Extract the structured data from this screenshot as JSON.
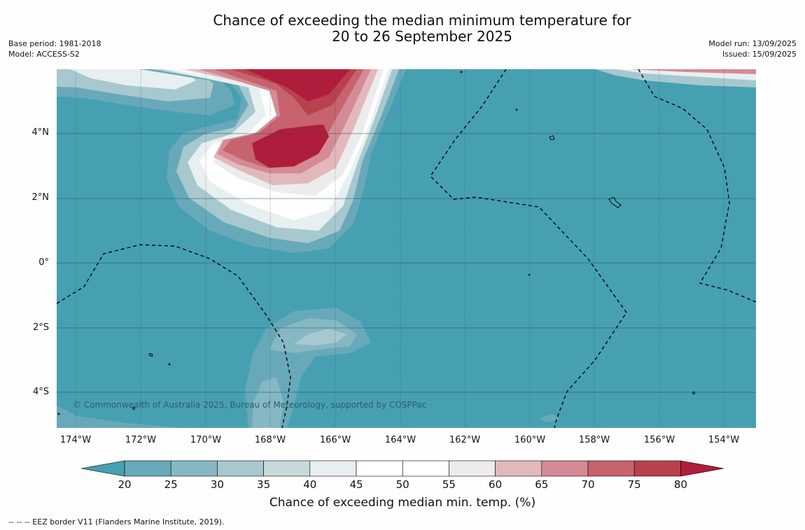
{
  "title_line1": "Chance of exceeding the median minimum temperature for",
  "title_line2": "20 to 26 September 2025",
  "base_period": "Base period: 1981-2018",
  "model": "Model: ACCESS-S2",
  "model_run": "Model run: 13/09/2025",
  "issued": "Issued: 15/09/2025",
  "copyright": "© Commonwealth of Australia 2025, Bureau of Meteorology, supported by COSPPac",
  "lat_labels": [
    "4°N",
    "2°N",
    "0°",
    "2°S",
    "4°S"
  ],
  "lon_labels": [
    "174°W",
    "172°W",
    "170°W",
    "168°W",
    "166°W",
    "164°W",
    "162°W",
    "160°W",
    "158°W",
    "156°W",
    "154°W"
  ],
  "colorbar": {
    "label": "Chance of exceeding median min. temp. (%)",
    "ticks": [
      "20",
      "25",
      "30",
      "35",
      "40",
      "45",
      "50",
      "55",
      "60",
      "65",
      "70",
      "75",
      "80"
    ],
    "colors": [
      "#68a9b9",
      "#86b8c4",
      "#a7c8cf",
      "#c8d9dc",
      "#e8eff0",
      "#ffffff",
      "#ffffff",
      "#ececec",
      "#e2b8bd",
      "#d48b95",
      "#c6636f",
      "#b9414e"
    ],
    "under_color": "#47a0b2",
    "over_color": "#b01c3b"
  },
  "footnote": "-- -- -- EEZ border V11 (Flanders Marine Institute, 2019).",
  "colors": {
    "background_field": "#47a0b2",
    "warm_max": "#b01c3b"
  }
}
